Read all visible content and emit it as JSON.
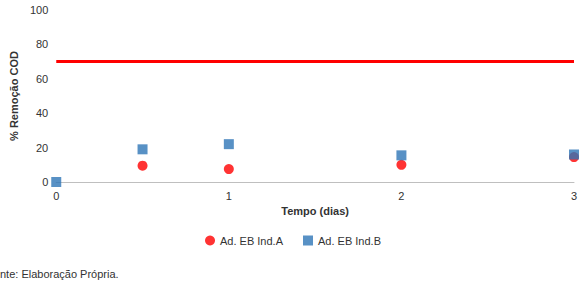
{
  "chart_data": {
    "type": "scatter",
    "x_label": "Tempo (dias)",
    "y_label": "% Remoção COD",
    "xlim": [
      0,
      3
    ],
    "xticks": [
      0,
      1,
      2,
      3
    ],
    "ylim": [
      0,
      100
    ],
    "yticks": [
      0,
      20,
      40,
      60,
      80,
      100
    ],
    "grid": false,
    "legend": "bottom",
    "annotations": [
      "nte: Elaboração Própria."
    ],
    "series": [
      {
        "name": "Ad. EB Ind.A",
        "color": "#ff0000",
        "marker": "circle",
        "x": [
          0.5,
          1,
          2,
          3
        ],
        "values": [
          9.5,
          7.5,
          10,
          14.5
        ]
      },
      {
        "name": "Ad. EB Ind.B",
        "color": "#2e75b6",
        "marker": "square",
        "x": [
          0,
          0.5,
          1,
          2,
          3
        ],
        "values": [
          0,
          19,
          22,
          15.5,
          16
        ]
      },
      {
        "type": "line",
        "color": "#ff0000",
        "line_style": "solid",
        "x": [
          0,
          3
        ],
        "values": [
          70,
          70
        ]
      }
    ]
  }
}
